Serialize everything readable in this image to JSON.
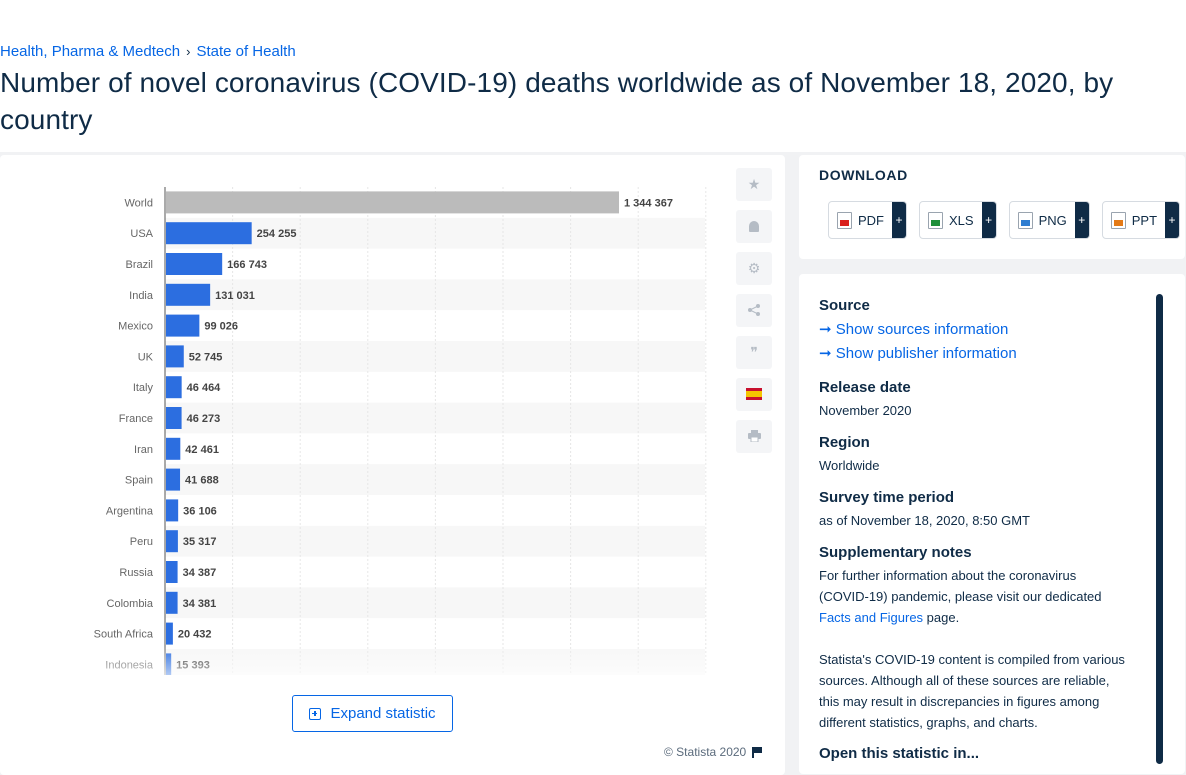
{
  "breadcrumb": {
    "item1": "Health, Pharma & Medtech",
    "separator": "›",
    "item2": "State of Health"
  },
  "page_title": "Number of novel coronavirus (COVID-19) deaths worldwide as of November 18, 2020, by country",
  "chart_data": {
    "type": "bar",
    "orientation": "horizontal",
    "categories": [
      "World",
      "USA",
      "Brazil",
      "India",
      "Mexico",
      "UK",
      "Italy",
      "France",
      "Iran",
      "Spain",
      "Argentina",
      "Peru",
      "Russia",
      "Colombia",
      "South Africa",
      "Indonesia"
    ],
    "values": [
      1344367,
      254255,
      166743,
      131031,
      99026,
      52745,
      46464,
      46273,
      42461,
      41688,
      36106,
      35317,
      34387,
      34381,
      20432,
      15393
    ],
    "value_labels": [
      "1 344 367",
      "254 255",
      "166 743",
      "131 031",
      "99 026",
      "52 745",
      "46 464",
      "46 273",
      "42 461",
      "41 688",
      "36 106",
      "35 317",
      "34 387",
      "34 381",
      "20 432",
      "15 393"
    ],
    "highlight_category": "World",
    "colors": {
      "bar": "#2c6ee0",
      "highlight": "#bbbbbb",
      "stripe": "#f7f7f7",
      "grid": "#e6e6e6"
    },
    "xlim": [
      0,
      1600000
    ],
    "grid": true
  },
  "chart_footer": {
    "expand_label": "Expand statistic",
    "copyright": "© Statista 2020"
  },
  "toolbar": {
    "icons": [
      "star-icon",
      "bell-icon",
      "gear-icon",
      "share-icon",
      "quote-icon",
      "spain-flag-icon",
      "print-icon"
    ],
    "glyphs": [
      "★",
      "🔔",
      "⚙",
      "⋈",
      "❞",
      "",
      "⎙"
    ]
  },
  "download": {
    "title": "DOWNLOAD",
    "buttons": [
      {
        "label": "PDF",
        "plus": "+"
      },
      {
        "label": "XLS",
        "plus": "+"
      },
      {
        "label": "PNG",
        "plus": "+"
      },
      {
        "label": "PPT",
        "plus": "+"
      }
    ]
  },
  "info": {
    "source_heading": "Source",
    "show_sources": "Show sources information",
    "show_publisher": "Show publisher information",
    "release_heading": "Release date",
    "release_value": "November 2020",
    "region_heading": "Region",
    "region_value": "Worldwide",
    "survey_heading": "Survey time period",
    "survey_value": "as of November 18, 2020, 8:50 GMT",
    "notes_heading": "Supplementary notes",
    "notes_text": "For further information about the coronavirus (COVID-19) pandemic, please visit our dedicated",
    "notes_link": "Facts and Figures",
    "notes_text_end": " page.",
    "notes_para2": "Statista's COVID-19 content is compiled from various sources. Although all of these sources are reliable, this may result in discrepancies in figures among different statistics, graphs, and charts.",
    "open_heading": "Open this statistic in..."
  }
}
